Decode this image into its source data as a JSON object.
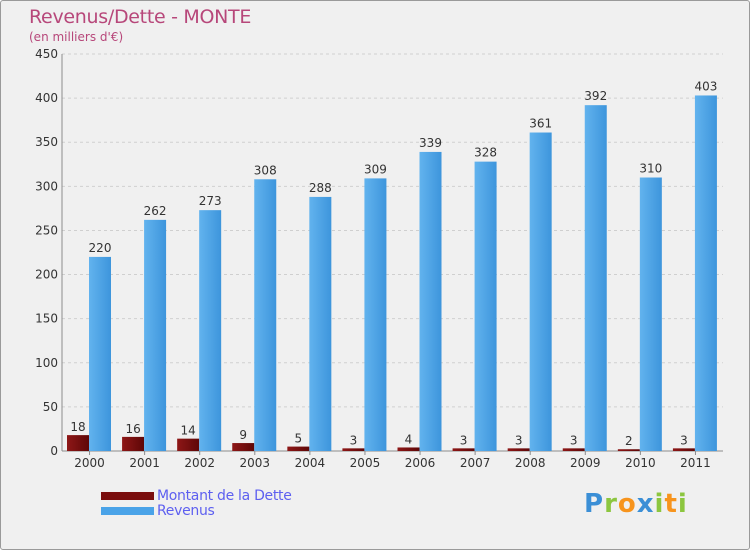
{
  "header": {
    "title": "Revenus/Dette - MONTE",
    "subtitle": "(en milliers d'€)"
  },
  "legend": {
    "items": [
      {
        "label": "Montant de la Dette",
        "color": "#7a0d0d"
      },
      {
        "label": "Revenus",
        "color": "#4aa3e8"
      }
    ]
  },
  "logo": {
    "letters": [
      {
        "ch": "P",
        "color": "#3b8fd6"
      },
      {
        "ch": "r",
        "color": "#8cc63f"
      },
      {
        "ch": "o",
        "color": "#f7941d"
      },
      {
        "ch": "x",
        "color": "#3b8fd6"
      },
      {
        "ch": "i",
        "color": "#8cc63f"
      },
      {
        "ch": "t",
        "color": "#f7941d"
      },
      {
        "ch": "i",
        "color": "#8cc63f"
      }
    ]
  },
  "chart_data": {
    "type": "bar",
    "title": "Revenus/Dette - MONTE",
    "subtitle": "(en milliers d'€)",
    "categories": [
      "2000",
      "2001",
      "2002",
      "2003",
      "2004",
      "2005",
      "2006",
      "2007",
      "2008",
      "2009",
      "2010",
      "2011"
    ],
    "series": [
      {
        "name": "Montant de la Dette",
        "color": "#7a0d0d",
        "values": [
          18,
          16,
          14,
          9,
          5,
          3,
          4,
          3,
          3,
          3,
          2,
          3
        ]
      },
      {
        "name": "Revenus",
        "color": "#4aa3e8",
        "values": [
          220,
          262,
          273,
          308,
          288,
          309,
          339,
          328,
          361,
          392,
          310,
          403
        ]
      }
    ],
    "ylim": [
      0,
      450
    ],
    "yticks": [
      0,
      50,
      100,
      150,
      200,
      250,
      300,
      350,
      400,
      450
    ],
    "grid": true,
    "legend_position": "bottom-left"
  }
}
